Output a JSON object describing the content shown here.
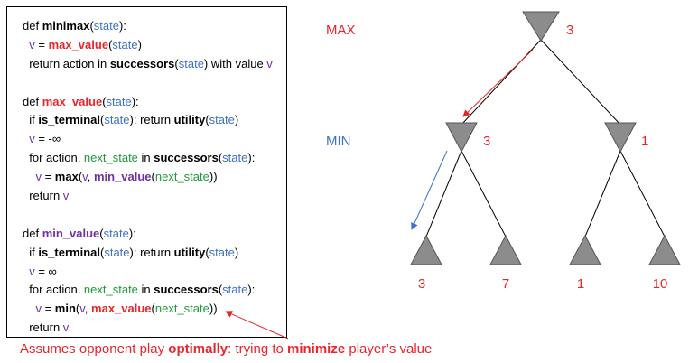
{
  "code_lines": [
    [
      {
        "t": "def ",
        "c": "kw"
      },
      {
        "t": "minimax",
        "c": "bold"
      },
      {
        "t": "(",
        "c": "kw"
      },
      {
        "t": "state",
        "c": "c-blue"
      },
      {
        "t": "):",
        "c": "kw"
      }
    ],
    [
      {
        "t": "  v",
        "c": "c-purple"
      },
      {
        "t": " = ",
        "c": "kw"
      },
      {
        "t": "max_value",
        "c": "c-red bold"
      },
      {
        "t": "(",
        "c": "kw"
      },
      {
        "t": "state",
        "c": "c-blue"
      },
      {
        "t": ")",
        "c": "kw"
      }
    ],
    [
      {
        "t": "  return action in ",
        "c": "kw"
      },
      {
        "t": "successors",
        "c": "bold"
      },
      {
        "t": "(",
        "c": "kw"
      },
      {
        "t": "state",
        "c": "c-blue"
      },
      {
        "t": ") with value ",
        "c": "kw"
      },
      {
        "t": "v",
        "c": "c-purple"
      }
    ],
    [],
    [
      {
        "t": "def ",
        "c": "kw"
      },
      {
        "t": "max_value",
        "c": "c-red bold"
      },
      {
        "t": "(",
        "c": "kw"
      },
      {
        "t": "state",
        "c": "c-blue"
      },
      {
        "t": "):",
        "c": "kw"
      }
    ],
    [
      {
        "t": "  if ",
        "c": "kw"
      },
      {
        "t": "is_terminal",
        "c": "bold"
      },
      {
        "t": "(",
        "c": "kw"
      },
      {
        "t": "state",
        "c": "c-blue"
      },
      {
        "t": "): return ",
        "c": "kw"
      },
      {
        "t": "utility",
        "c": "bold"
      },
      {
        "t": "(",
        "c": "kw"
      },
      {
        "t": "state",
        "c": "c-blue"
      },
      {
        "t": ")",
        "c": "kw"
      }
    ],
    [
      {
        "t": "  v",
        "c": "c-purple"
      },
      {
        "t": " = -∞",
        "c": "kw"
      }
    ],
    [
      {
        "t": "  for action, ",
        "c": "kw"
      },
      {
        "t": "next_state",
        "c": "c-green"
      },
      {
        "t": " in ",
        "c": "kw"
      },
      {
        "t": "successors",
        "c": "bold"
      },
      {
        "t": "(",
        "c": "kw"
      },
      {
        "t": "state",
        "c": "c-blue"
      },
      {
        "t": "):",
        "c": "kw"
      }
    ],
    [
      {
        "t": "    v",
        "c": "c-purple"
      },
      {
        "t": " = ",
        "c": "kw"
      },
      {
        "t": "max",
        "c": "bold"
      },
      {
        "t": "(",
        "c": "kw"
      },
      {
        "t": "v",
        "c": "c-purple"
      },
      {
        "t": ", ",
        "c": "kw"
      },
      {
        "t": "min_value",
        "c": "c-purple bold"
      },
      {
        "t": "(",
        "c": "kw"
      },
      {
        "t": "next_state",
        "c": "c-green"
      },
      {
        "t": "))",
        "c": "kw"
      }
    ],
    [
      {
        "t": "  return ",
        "c": "kw"
      },
      {
        "t": "v",
        "c": "c-purple"
      }
    ],
    [],
    [
      {
        "t": "def ",
        "c": "kw"
      },
      {
        "t": "min_value",
        "c": "c-purple bold"
      },
      {
        "t": "(",
        "c": "kw"
      },
      {
        "t": "state",
        "c": "c-blue"
      },
      {
        "t": "):",
        "c": "kw"
      }
    ],
    [
      {
        "t": "  if ",
        "c": "kw"
      },
      {
        "t": "is_terminal",
        "c": "bold"
      },
      {
        "t": "(",
        "c": "kw"
      },
      {
        "t": "state",
        "c": "c-blue"
      },
      {
        "t": "): return ",
        "c": "kw"
      },
      {
        "t": "utility",
        "c": "bold"
      },
      {
        "t": "(",
        "c": "kw"
      },
      {
        "t": "state",
        "c": "c-blue"
      },
      {
        "t": ")",
        "c": "kw"
      }
    ],
    [
      {
        "t": "  v",
        "c": "c-purple"
      },
      {
        "t": " = ∞",
        "c": "kw"
      }
    ],
    [
      {
        "t": "  for action, ",
        "c": "kw"
      },
      {
        "t": "next_state",
        "c": "c-green"
      },
      {
        "t": " in ",
        "c": "kw"
      },
      {
        "t": "successors",
        "c": "bold"
      },
      {
        "t": "(",
        "c": "kw"
      },
      {
        "t": "state",
        "c": "c-blue"
      },
      {
        "t": "):",
        "c": "kw"
      }
    ],
    [
      {
        "t": "    v",
        "c": "c-purple"
      },
      {
        "t": " = ",
        "c": "kw"
      },
      {
        "t": "min",
        "c": "bold"
      },
      {
        "t": "(",
        "c": "kw"
      },
      {
        "t": "v",
        "c": "c-purple"
      },
      {
        "t": ", ",
        "c": "kw"
      },
      {
        "t": "max_value",
        "c": "c-red bold"
      },
      {
        "t": "(",
        "c": "kw"
      },
      {
        "t": "next_state",
        "c": "c-green"
      },
      {
        "t": "))",
        "c": "kw"
      }
    ],
    [
      {
        "t": "  return ",
        "c": "kw"
      },
      {
        "t": "v",
        "c": "c-purple"
      }
    ]
  ],
  "note": {
    "part1": "Assumes opponent play ",
    "bold1": "optimally",
    "part2": ": trying to ",
    "bold2": "minimize",
    "part3": " player’s value"
  },
  "tree": {
    "max_label": "MAX",
    "min_label": "MIN",
    "root_value": "3",
    "min_left_value": "3",
    "min_right_value": "1",
    "leaf_values": [
      "3",
      "7",
      "1",
      "10"
    ]
  },
  "colors": {
    "red": "#e8262a",
    "blue": "#3d72c2",
    "node_fill": "#8c8c8c"
  }
}
